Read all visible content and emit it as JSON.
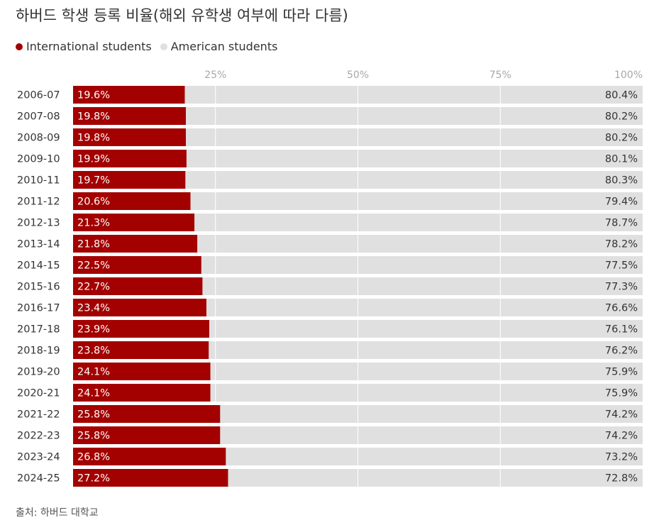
{
  "title": "하버드 학생 등록 비율(해외 유학생 여부에 따라 다름)",
  "legend": {
    "international_label": "International students",
    "american_label": "American students"
  },
  "source": "출처: 하버드 대학교",
  "colors": {
    "international": "#a30000",
    "american": "#e0e0e0",
    "gridline": "#ffffff",
    "tick_text": "#a8a8a8"
  },
  "chart_data": {
    "type": "bar",
    "orientation": "horizontal",
    "stacked": true,
    "title": "하버드 학생 등록 비율(해외 유학생 여부에 따라 다름)",
    "xlim": [
      0,
      100
    ],
    "x_ticks": [
      25,
      50,
      75,
      100
    ],
    "x_tick_labels": [
      "25%",
      "50%",
      "75%",
      "100%"
    ],
    "legend_position": "top-left",
    "categories": [
      "2006-07",
      "2007-08",
      "2008-09",
      "2009-10",
      "2010-11",
      "2011-12",
      "2012-13",
      "2013-14",
      "2014-15",
      "2015-16",
      "2016-17",
      "2017-18",
      "2018-19",
      "2019-20",
      "2020-21",
      "2021-22",
      "2022-23",
      "2023-24",
      "2024-25"
    ],
    "series": [
      {
        "name": "International students",
        "color": "#a30000",
        "values": [
          19.6,
          19.8,
          19.8,
          19.9,
          19.7,
          20.6,
          21.3,
          21.8,
          22.5,
          22.7,
          23.4,
          23.9,
          23.8,
          24.1,
          24.1,
          25.8,
          25.8,
          26.8,
          27.2
        ],
        "labels": [
          "19.6%",
          "19.8%",
          "19.8%",
          "19.9%",
          "19.7%",
          "20.6%",
          "21.3%",
          "21.8%",
          "22.5%",
          "22.7%",
          "23.4%",
          "23.9%",
          "23.8%",
          "24.1%",
          "24.1%",
          "25.8%",
          "25.8%",
          "26.8%",
          "27.2%"
        ]
      },
      {
        "name": "American students",
        "color": "#e0e0e0",
        "values": [
          80.4,
          80.2,
          80.2,
          80.1,
          80.3,
          79.4,
          78.7,
          78.2,
          77.5,
          77.3,
          76.6,
          76.1,
          76.2,
          75.9,
          75.9,
          74.2,
          74.2,
          73.2,
          72.8
        ],
        "labels": [
          "80.4%",
          "80.2%",
          "80.2%",
          "80.1%",
          "80.3%",
          "79.4%",
          "78.7%",
          "78.2%",
          "77.5%",
          "77.3%",
          "76.6%",
          "76.1%",
          "76.2%",
          "75.9%",
          "75.9%",
          "74.2%",
          "74.2%",
          "73.2%",
          "72.8%"
        ]
      }
    ]
  }
}
